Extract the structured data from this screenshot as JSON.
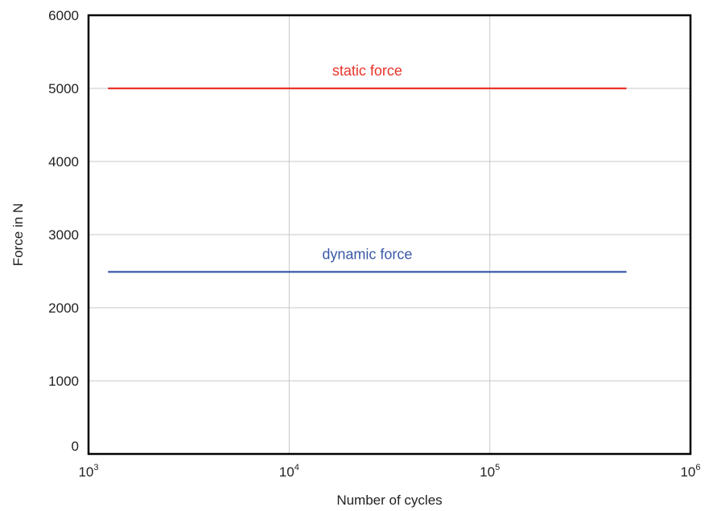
{
  "chart_data": {
    "type": "line",
    "xlabel": "Number of cycles",
    "ylabel": "Force in N",
    "xscale": "log",
    "xlim": [
      1000,
      1000000
    ],
    "ylim": [
      0,
      6000
    ],
    "grid": true,
    "x_ticks": [
      {
        "base": "10",
        "exp": "3",
        "value": 1000
      },
      {
        "base": "10",
        "exp": "4",
        "value": 10000
      },
      {
        "base": "10",
        "exp": "5",
        "value": 100000
      },
      {
        "base": "10",
        "exp": "6",
        "value": 1000000
      }
    ],
    "y_ticks": [
      "0",
      "1000",
      "2000",
      "3000",
      "4000",
      "5000",
      "6000"
    ],
    "series": [
      {
        "name": "static force",
        "color": "#e8332a",
        "x": [
          1250,
          480000
        ],
        "y": [
          5000,
          5000
        ]
      },
      {
        "name": "dynamic force",
        "color": "#3a59a8",
        "x": [
          1250,
          480000
        ],
        "y": [
          2490,
          2490
        ]
      }
    ]
  }
}
